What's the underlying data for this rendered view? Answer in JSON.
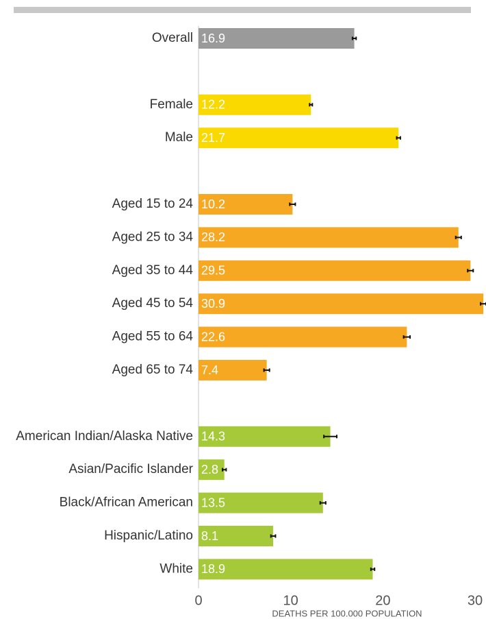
{
  "chart_data": {
    "type": "bar",
    "orientation": "horizontal",
    "xlabel": "DEATHS PER 100.000 POPULATION",
    "xlim": [
      0,
      30
    ],
    "xticks": [
      0,
      10,
      20,
      30
    ],
    "groups": [
      {
        "color": "#9a9a9a",
        "categories": [
          "Overall"
        ],
        "values": [
          16.9
        ],
        "errors": [
          0.2
        ]
      },
      {
        "color": "#f9d900",
        "categories": [
          "Female",
          "Male"
        ],
        "values": [
          12.2,
          21.7
        ],
        "errors": [
          0.15,
          0.2
        ]
      },
      {
        "color": "#f7a823",
        "categories": [
          "Aged 15 to 24",
          "Aged 25 to 34",
          "Aged 35 to 44",
          "Aged 45 to 54",
          "Aged 55 to 64",
          "Aged 65 to 74"
        ],
        "values": [
          10.2,
          28.2,
          29.5,
          30.9,
          22.6,
          7.4
        ],
        "errors": [
          0.3,
          0.3,
          0.3,
          0.3,
          0.35,
          0.3
        ]
      },
      {
        "color": "#a6c93a",
        "categories": [
          "American Indian/Alaska Native",
          "Asian/Pacific Islander",
          "Black/African American",
          "Hispanic/Latino",
          "White"
        ],
        "values": [
          14.3,
          2.8,
          13.5,
          8.1,
          18.9
        ],
        "errors": [
          0.7,
          0.2,
          0.3,
          0.25,
          0.2
        ]
      }
    ]
  }
}
